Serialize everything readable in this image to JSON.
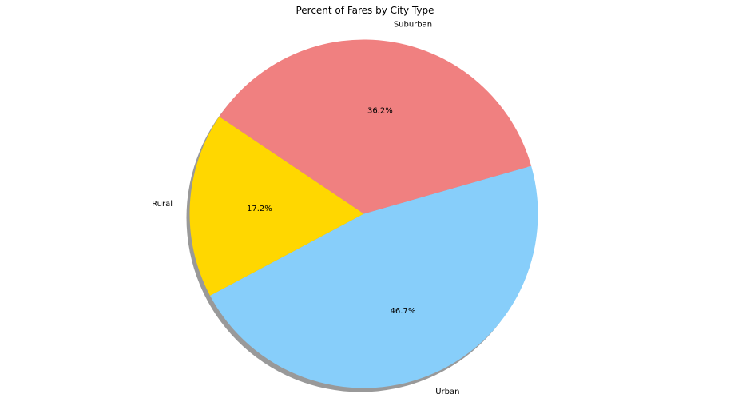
{
  "chart_data": {
    "type": "pie",
    "title": "Percent of Fares by City Type",
    "categories": [
      "Urban",
      "Suburban",
      "Rural"
    ],
    "values": [
      46.7,
      36.2,
      17.2
    ],
    "percent_labels": [
      "46.7%",
      "36.2%",
      "17.2%"
    ],
    "colors": [
      "#87cefa",
      "#f08080",
      "#ffd700"
    ],
    "start_angle": 208,
    "shadow": true
  }
}
